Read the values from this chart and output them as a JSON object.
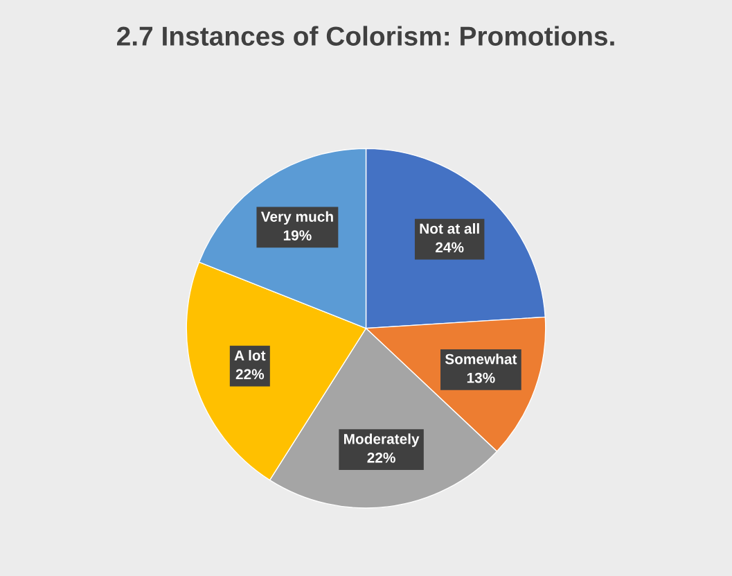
{
  "chart_data": {
    "type": "pie",
    "title": "2.7 Instances of Colorism: Promotions.",
    "categories": [
      "Not at all",
      "Somewhat",
      "Moderately",
      "A lot",
      "Very much"
    ],
    "values": [
      24,
      13,
      22,
      22,
      19
    ],
    "value_labels": [
      "24%",
      "13%",
      "22%",
      "22%",
      "19%"
    ],
    "colors": [
      "#4472c4",
      "#ed7d31",
      "#a5a5a5",
      "#ffc000",
      "#5b9bd5"
    ],
    "legend": false
  }
}
